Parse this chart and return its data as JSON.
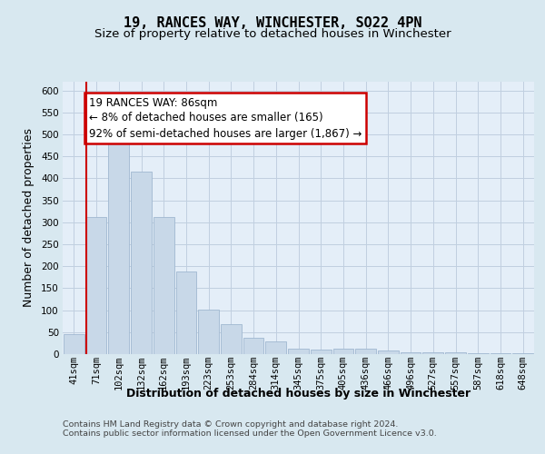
{
  "title": "19, RANCES WAY, WINCHESTER, SO22 4PN",
  "subtitle": "Size of property relative to detached houses in Winchester",
  "xlabel": "Distribution of detached houses by size in Winchester",
  "ylabel": "Number of detached properties",
  "categories": [
    "41sqm",
    "71sqm",
    "102sqm",
    "132sqm",
    "162sqm",
    "193sqm",
    "223sqm",
    "253sqm",
    "284sqm",
    "314sqm",
    "345sqm",
    "375sqm",
    "405sqm",
    "436sqm",
    "466sqm",
    "496sqm",
    "527sqm",
    "557sqm",
    "587sqm",
    "618sqm",
    "648sqm"
  ],
  "values": [
    45,
    312,
    480,
    415,
    312,
    188,
    102,
    68,
    37,
    28,
    13,
    10,
    12,
    12,
    8,
    5,
    5,
    4,
    3,
    3,
    3
  ],
  "bar_color": "#c8d8e8",
  "bar_edge_color": "#a0b8d0",
  "annotation_text": "19 RANCES WAY: 86sqm\n← 8% of detached houses are smaller (165)\n92% of semi-detached houses are larger (1,867) →",
  "annotation_box_color": "#ffffff",
  "annotation_box_edge_color": "#cc0000",
  "red_line_color": "#cc0000",
  "grid_color": "#c0cfe0",
  "background_color": "#d8e8f0",
  "plot_bg_color": "#e4eef8",
  "ylim": [
    0,
    620
  ],
  "yticks": [
    0,
    50,
    100,
    150,
    200,
    250,
    300,
    350,
    400,
    450,
    500,
    550,
    600
  ],
  "footer_text": "Contains HM Land Registry data © Crown copyright and database right 2024.\nContains public sector information licensed under the Open Government Licence v3.0.",
  "title_fontsize": 11,
  "subtitle_fontsize": 9.5,
  "axis_label_fontsize": 9,
  "tick_fontsize": 7.5,
  "annotation_fontsize": 8.5,
  "footer_fontsize": 6.8
}
